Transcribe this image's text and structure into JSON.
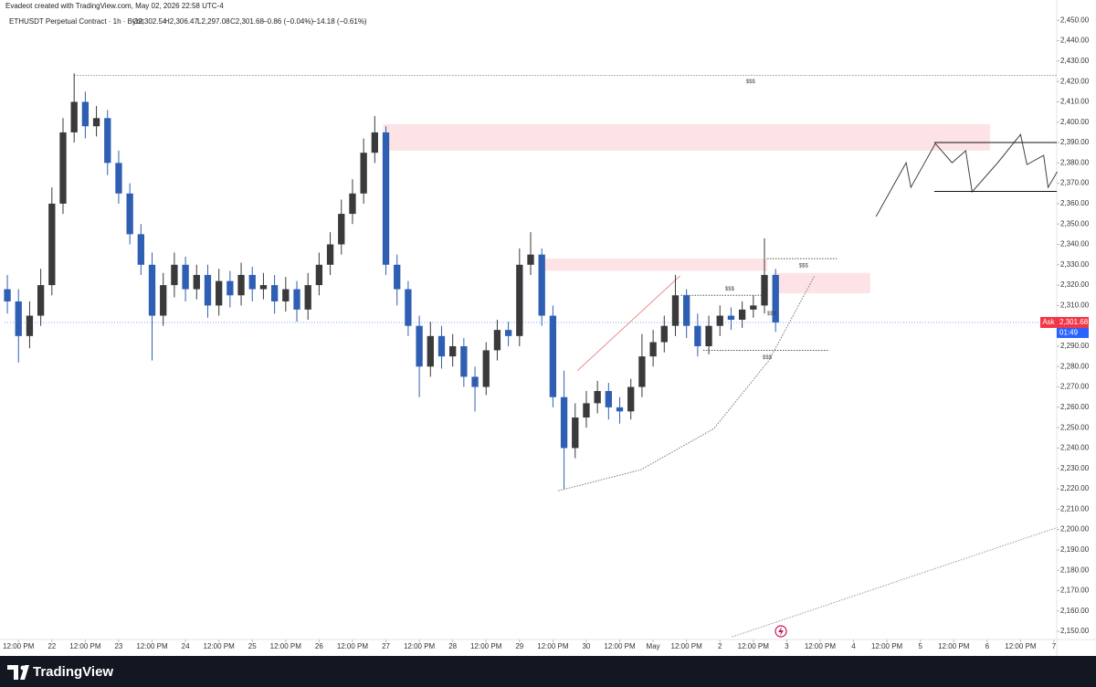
{
  "header": {
    "watermark": "Evadeot created with TradingView.com, May 02, 2026 22:58 UTC-4",
    "symbol": "ETHUSDT Perpetual Contract · 1h · Bybit",
    "ohlc": [
      "O2,302.54",
      "H2,306.47",
      "L2,297.08",
      "C2,301.68"
    ],
    "change": "−0.86 (−0.04%)",
    "change2": "−14.18 (−0.61%)"
  },
  "chart_data": {
    "type": "candlestick",
    "x": [
      -16,
      -12,
      -8,
      -4,
      0,
      4,
      8,
      12,
      16,
      20,
      24,
      28,
      32,
      36,
      40,
      44,
      48,
      52,
      56,
      60,
      64,
      68,
      72,
      76,
      80,
      84,
      88,
      92,
      96,
      100,
      104,
      108,
      112,
      116,
      120,
      124,
      128,
      132,
      136,
      140,
      144,
      148,
      152,
      156,
      160,
      164,
      168,
      172,
      176,
      180,
      184,
      188,
      192,
      196,
      200,
      204,
      208,
      212,
      216,
      220,
      224,
      228,
      232,
      236,
      240,
      244,
      248,
      252,
      256,
      260
    ],
    "open": [
      2318,
      2312,
      2295,
      2305,
      2320,
      2360,
      2395,
      2410,
      2398,
      2402,
      2380,
      2365,
      2345,
      2330,
      2305,
      2320,
      2330,
      2318,
      2325,
      2310,
      2322,
      2315,
      2325,
      2318,
      2320,
      2312,
      2318,
      2308,
      2320,
      2330,
      2340,
      2355,
      2365,
      2385,
      2395,
      2330,
      2318,
      2300,
      2280,
      2295,
      2285,
      2290,
      2275,
      2270,
      2288,
      2298,
      2295,
      2330,
      2335,
      2305,
      2265,
      2240,
      2255,
      2262,
      2268,
      2260,
      2258,
      2270,
      2285,
      2292,
      2300,
      2315,
      2300,
      2290,
      2300,
      2305,
      2303,
      2308,
      2310,
      2325
    ],
    "high": [
      2325,
      2318,
      2312,
      2328,
      2368,
      2402,
      2424,
      2415,
      2408,
      2406,
      2386,
      2370,
      2350,
      2336,
      2326,
      2336,
      2334,
      2330,
      2330,
      2328,
      2327,
      2331,
      2329,
      2326,
      2325,
      2324,
      2322,
      2326,
      2336,
      2346,
      2362,
      2372,
      2392,
      2403,
      2398,
      2335,
      2322,
      2305,
      2302,
      2300,
      2296,
      2294,
      2280,
      2292,
      2303,
      2302,
      2338,
      2346,
      2338,
      2310,
      2278,
      2262,
      2268,
      2273,
      2272,
      2265,
      2274,
      2296,
      2298,
      2305,
      2325,
      2318,
      2306,
      2305,
      2310,
      2309,
      2312,
      2315,
      2343,
      2328
    ],
    "low": [
      2306,
      2282,
      2289,
      2300,
      2315,
      2355,
      2390,
      2392,
      2393,
      2374,
      2360,
      2340,
      2325,
      2283,
      2300,
      2314,
      2312,
      2313,
      2304,
      2305,
      2309,
      2310,
      2312,
      2313,
      2306,
      2307,
      2302,
      2303,
      2315,
      2325,
      2335,
      2350,
      2360,
      2380,
      2325,
      2310,
      2295,
      2265,
      2275,
      2279,
      2280,
      2270,
      2258,
      2266,
      2283,
      2290,
      2290,
      2325,
      2300,
      2260,
      2220,
      2235,
      2250,
      2257,
      2254,
      2252,
      2254,
      2265,
      2280,
      2287,
      2295,
      2294,
      2285,
      2286,
      2295,
      2298,
      2299,
      2304,
      2306,
      2297
    ],
    "close": [
      2312,
      2295,
      2305,
      2320,
      2360,
      2395,
      2410,
      2398,
      2402,
      2380,
      2365,
      2345,
      2330,
      2305,
      2320,
      2330,
      2318,
      2325,
      2310,
      2322,
      2315,
      2325,
      2318,
      2320,
      2312,
      2318,
      2308,
      2320,
      2330,
      2340,
      2355,
      2365,
      2385,
      2395,
      2330,
      2318,
      2300,
      2280,
      2295,
      2285,
      2290,
      2275,
      2270,
      2288,
      2298,
      2295,
      2330,
      2335,
      2305,
      2265,
      2240,
      2255,
      2262,
      2268,
      2260,
      2258,
      2270,
      2285,
      2292,
      2300,
      2315,
      2300,
      2290,
      2300,
      2305,
      2303,
      2308,
      2310,
      2325,
      2301.68
    ],
    "up_color": "#3a3a3a",
    "down_color": "#2f5fb3",
    "xlim": [
      -17,
      361
    ],
    "xticks": [
      {
        "value": -12,
        "label": "12:00 PM"
      },
      {
        "value": 0,
        "label": "22"
      },
      {
        "value": 12,
        "label": "12:00 PM"
      },
      {
        "value": 24,
        "label": "23"
      },
      {
        "value": 36,
        "label": "12:00 PM"
      },
      {
        "value": 48,
        "label": "24"
      },
      {
        "value": 60,
        "label": "12:00 PM"
      },
      {
        "value": 72,
        "label": "25"
      },
      {
        "value": 84,
        "label": "12:00 PM"
      },
      {
        "value": 96,
        "label": "26"
      },
      {
        "value": 108,
        "label": "12:00 PM"
      },
      {
        "value": 120,
        "label": "27"
      },
      {
        "value": 132,
        "label": "12:00 PM"
      },
      {
        "value": 144,
        "label": "28"
      },
      {
        "value": 156,
        "label": "12:00 PM"
      },
      {
        "value": 168,
        "label": "29"
      },
      {
        "value": 180,
        "label": "12:00 PM"
      },
      {
        "value": 192,
        "label": "30"
      },
      {
        "value": 204,
        "label": "12:00 PM"
      },
      {
        "value": 216,
        "label": "May"
      },
      {
        "value": 228,
        "label": "12:00 PM"
      },
      {
        "value": 240,
        "label": "2"
      },
      {
        "value": 252,
        "label": "12:00 PM"
      },
      {
        "value": 264,
        "label": "3"
      },
      {
        "value": 276,
        "label": "12:00 PM"
      },
      {
        "value": 288,
        "label": "4"
      },
      {
        "value": 300,
        "label": "12:00 PM"
      },
      {
        "value": 312,
        "label": "5"
      },
      {
        "value": 324,
        "label": "12:00 PM"
      },
      {
        "value": 336,
        "label": "6"
      },
      {
        "value": 348,
        "label": "12:00 PM"
      },
      {
        "value": 360,
        "label": "7"
      }
    ],
    "ylim": [
      2146,
      2460
    ],
    "yticks": [
      {
        "value": 2150,
        "label": "2,150.00"
      },
      {
        "value": 2160,
        "label": "2,160.00"
      },
      {
        "value": 2170,
        "label": "2,170.00"
      },
      {
        "value": 2180,
        "label": "2,180.00"
      },
      {
        "value": 2190,
        "label": "2,190.00"
      },
      {
        "value": 2200,
        "label": "2,200.00"
      },
      {
        "value": 2210,
        "label": "2,210.00"
      },
      {
        "value": 2220,
        "label": "2,220.00"
      },
      {
        "value": 2230,
        "label": "2,230.00"
      },
      {
        "value": 2240,
        "label": "2,240.00"
      },
      {
        "value": 2250,
        "label": "2,250.00"
      },
      {
        "value": 2260,
        "label": "2,260.00"
      },
      {
        "value": 2270,
        "label": "2,270.00"
      },
      {
        "value": 2280,
        "label": "2,280.00"
      },
      {
        "value": 2290,
        "label": "2,290.00"
      },
      {
        "value": 2300,
        "label": "2,300.00"
      },
      {
        "value": 2310,
        "label": "2,310.00"
      },
      {
        "value": 2320,
        "label": "2,320.00"
      },
      {
        "value": 2330,
        "label": "2,330.00"
      },
      {
        "value": 2340,
        "label": "2,340.00"
      },
      {
        "value": 2350,
        "label": "2,350.00"
      },
      {
        "value": 2360,
        "label": "2,360.00"
      },
      {
        "value": 2370,
        "label": "2,370.00"
      },
      {
        "value": 2380,
        "label": "2,380.00"
      },
      {
        "value": 2390,
        "label": "2,390.00"
      },
      {
        "value": 2400,
        "label": "2,400.00"
      },
      {
        "value": 2410,
        "label": "2,410.00"
      },
      {
        "value": 2420,
        "label": "2,420.00"
      },
      {
        "value": 2430,
        "label": "2,430.00"
      },
      {
        "value": 2440,
        "label": "2,440.00"
      },
      {
        "value": 2450,
        "label": "2,450.00"
      }
    ],
    "grid": false,
    "last_price": {
      "value": 2301.68,
      "label": "2,301.68",
      "side": "Ask",
      "countdown": "01:49",
      "color": "#f23645",
      "countdown_color": "#2962ff"
    },
    "zones": [
      {
        "x": [
          119,
          337
        ],
        "y": [
          2386,
          2399
        ],
        "color": "rgba(242,54,69,0.14)"
      },
      {
        "x": [
          175,
          257
        ],
        "y": [
          2327,
          2333
        ],
        "color": "rgba(242,54,69,0.14)"
      },
      {
        "x": [
          259,
          294
        ],
        "y": [
          2316,
          2326
        ],
        "color": "rgba(242,54,69,0.14)"
      }
    ],
    "lines": [
      {
        "points": [
          [
            8,
            2423
          ],
          [
            361,
            2423
          ]
        ],
        "color": "#9a9a9a",
        "style": "dotted"
      },
      {
        "points": [
          [
            226,
            2315
          ],
          [
            256,
            2315
          ]
        ],
        "color": "#555555",
        "style": "dotted"
      },
      {
        "points": [
          [
            257,
            2333
          ],
          [
            282,
            2333
          ]
        ],
        "color": "#555555",
        "style": "dotted"
      },
      {
        "points": [
          [
            234,
            2288
          ],
          [
            279,
            2288
          ]
        ],
        "color": "#555555",
        "style": "dotted"
      },
      {
        "points": [
          [
            188.8,
            2278
          ],
          [
            225.7,
            2324.6
          ]
        ],
        "color": "#f28b8b",
        "style": "solid"
      },
      {
        "points": [
          [
            181.9,
            2219
          ],
          [
            211.5,
            2229.3
          ],
          [
            237.8,
            2249.5
          ],
          [
            257.6,
            2283
          ],
          [
            274,
            2324.6
          ]
        ],
        "color": "#777777",
        "style": "dotted"
      },
      {
        "points": [
          [
            244.4,
            2147.3
          ],
          [
            361.2,
            2201
          ]
        ],
        "color": "#9a9a9a",
        "style": "dotted"
      },
      {
        "points": [
          [
            296.1,
            2353.7
          ],
          [
            306.9,
            2380.1
          ],
          [
            308.6,
            2368
          ],
          [
            317.4,
            2389.5
          ],
          [
            323.4,
            2380.1
          ],
          [
            328.3,
            2386
          ],
          [
            330.6,
            2365.8
          ],
          [
            339.8,
            2380.1
          ],
          [
            348,
            2394
          ],
          [
            350.3,
            2379.2
          ],
          [
            356.3,
            2383.7
          ],
          [
            357.9,
            2368
          ],
          [
            361.2,
            2375.7
          ]
        ],
        "color": "#444444",
        "style": "solid"
      },
      {
        "points": [
          [
            317,
            2390
          ],
          [
            361,
            2390
          ]
        ],
        "color": "#111111",
        "style": "solid"
      },
      {
        "points": [
          [
            317,
            2366
          ],
          [
            361,
            2366
          ]
        ],
        "color": "#111111",
        "style": "solid"
      }
    ],
    "annotations": [
      {
        "text": "$$$",
        "x": 251,
        "y": 2420
      },
      {
        "text": "$$$",
        "x": 243.5,
        "y": 2318
      },
      {
        "text": "$$$",
        "x": 270,
        "y": 2329.5
      },
      {
        "text": "$$$",
        "x": 257,
        "y": 2284.5
      },
      {
        "text": "$$$",
        "x": 258.6,
        "y": 2306
      }
    ]
  },
  "footer": {
    "brand": "TradingView"
  }
}
